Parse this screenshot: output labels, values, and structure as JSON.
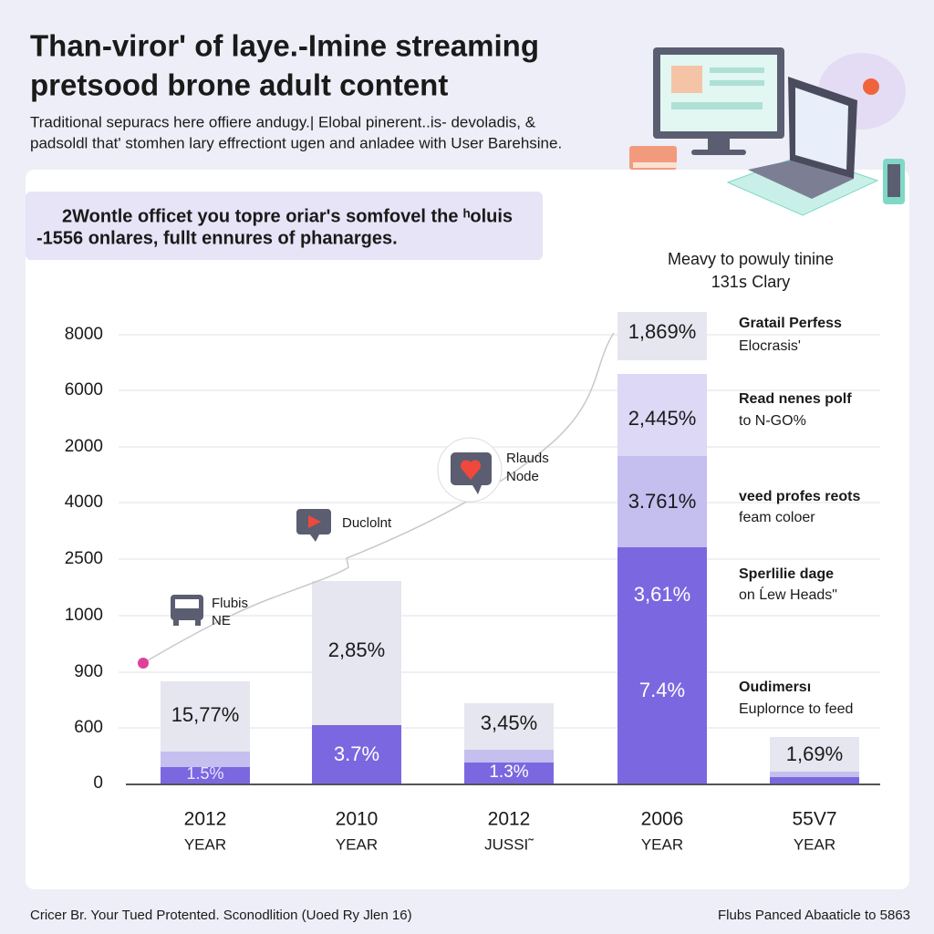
{
  "header": {
    "title_lines": [
      "Than-viror' of laye.-Imine streaming",
      "pretsood brone adult content"
    ],
    "subtitle_lines": [
      "Traditional sepuracs here offiere andugy.| Elobal pinerent..is- devoladis, &",
      "padsoldl that' stomhen lary effrectiont ugen and anladee with User Barehsine."
    ]
  },
  "callout": {
    "lines": [
      "2Wontle officet you topre oriar's somfovel the ʰoluis",
      "-1556 onlares, fullt ennures of phanarges."
    ]
  },
  "y_axis_labels": [
    "8000",
    "6000",
    "2000",
    "4000",
    "2500",
    "1000",
    "900",
    "600",
    "0"
  ],
  "bars": [
    {
      "segment_labels": [
        "15,77%",
        "1.5%"
      ],
      "year": "2012",
      "caption": "YEAR"
    },
    {
      "segment_labels": [
        "2,85%",
        "3.7%"
      ],
      "year": "2010",
      "caption": "YEAR"
    },
    {
      "segment_labels": [
        "3,45%",
        "1.3%"
      ],
      "year": "2012",
      "caption": "JUSSI˜"
    },
    {
      "segment_labels": [
        "1,869%",
        "2,445%",
        "3.761%",
        "3,61%",
        "7.4%"
      ],
      "year": "2006",
      "caption": "YEAR"
    },
    {
      "segment_labels": [
        "1,69%"
      ],
      "year": "55V7",
      "caption": "YEAR"
    }
  ],
  "markers": [
    {
      "lines": [
        "Flubis",
        "NE"
      ]
    },
    {
      "lines": [
        "Duclolnt"
      ]
    },
    {
      "lines": [
        "Rlauds",
        "Node"
      ]
    }
  ],
  "legend": {
    "heading": [
      "Meavy to powuly tinine",
      "131ꜱ Clary"
    ],
    "items": [
      {
        "title": "Gratail Perfess",
        "text": "Elocrasis'"
      },
      {
        "title": "Read nenes polf",
        "text": "to N-GO%"
      },
      {
        "title": "veed profes reots",
        "text": "feam coloer"
      },
      {
        "title": "Sperlilie dage",
        "text": "on Ĺew Heads\""
      },
      {
        "title": "Oudimersı",
        "text": "Euplornce to feed"
      }
    ]
  },
  "footer": {
    "left": "Cricer Br. Your Tued Protented. Sconodlition (Uoed Ry Jlen 16)",
    "right": "Flubs Panced Abaaticle to 5863"
  }
}
